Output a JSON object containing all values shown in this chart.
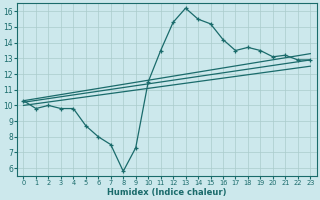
{
  "xlabel": "Humidex (Indice chaleur)",
  "bg_color": "#cce8ec",
  "grid_color": "#aacccc",
  "line_color": "#1a6b6b",
  "xlim": [
    -0.5,
    23.5
  ],
  "ylim": [
    5.5,
    16.5
  ],
  "xticks": [
    0,
    1,
    2,
    3,
    4,
    5,
    6,
    7,
    8,
    9,
    10,
    11,
    12,
    13,
    14,
    15,
    16,
    17,
    18,
    19,
    20,
    21,
    22,
    23
  ],
  "yticks": [
    6,
    7,
    8,
    9,
    10,
    11,
    12,
    13,
    14,
    15,
    16
  ],
  "line1_x": [
    0,
    1,
    2,
    3,
    4,
    5,
    6,
    7,
    8,
    9,
    10,
    11,
    12,
    13,
    14,
    15,
    16,
    17,
    18,
    19,
    20,
    21,
    22,
    23
  ],
  "line1_y": [
    10.3,
    9.8,
    10.0,
    9.8,
    9.8,
    8.7,
    8.0,
    7.5,
    5.8,
    7.3,
    11.5,
    13.5,
    15.3,
    16.2,
    15.5,
    15.2,
    14.2,
    13.5,
    13.7,
    13.5,
    13.1,
    13.2,
    12.9,
    12.9
  ],
  "line2_x": [
    0,
    23
  ],
  "line2_y": [
    10.3,
    13.3
  ],
  "line3_x": [
    0,
    23
  ],
  "line3_y": [
    10.2,
    12.9
  ],
  "line4_x": [
    0,
    23
  ],
  "line4_y": [
    10.0,
    12.5
  ],
  "linewidth": 0.9
}
